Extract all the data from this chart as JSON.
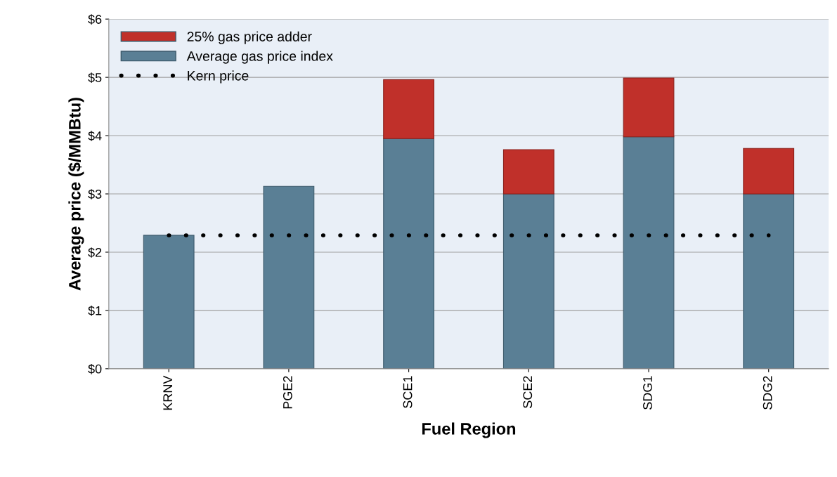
{
  "chart_data": {
    "type": "bar",
    "stacked": true,
    "xlabel": "Fuel Region",
    "ylabel": "Average price ($/MMBtu)",
    "categories": [
      "KRNV",
      "PGE2",
      "SCE1",
      "SCE2",
      "SDG1",
      "SDG2"
    ],
    "series": [
      {
        "name": "Average gas price index",
        "color": "#5a7f95",
        "values": [
          2.29,
          3.13,
          3.95,
          3.0,
          3.98,
          3.0
        ]
      },
      {
        "name": "25% gas price adder",
        "color": "#c0302a",
        "values": [
          null,
          null,
          1.01,
          0.76,
          1.01,
          0.78
        ]
      },
      {
        "name": "Kern price",
        "type": "line",
        "color": "#000000",
        "line_style": "dotted",
        "values": [
          2.29,
          2.29,
          2.29,
          2.29,
          2.29,
          2.29
        ]
      }
    ],
    "ylim": [
      0,
      6
    ],
    "yticks": [
      {
        "value": 0,
        "label": "$0"
      },
      {
        "value": 1,
        "label": "$1"
      },
      {
        "value": 2,
        "label": "$2"
      },
      {
        "value": 3,
        "label": "$3"
      },
      {
        "value": 4,
        "label": "$4"
      },
      {
        "value": 5,
        "label": "$5"
      },
      {
        "value": 6,
        "label": "$6"
      }
    ],
    "grid": "y",
    "legend": "top left"
  }
}
